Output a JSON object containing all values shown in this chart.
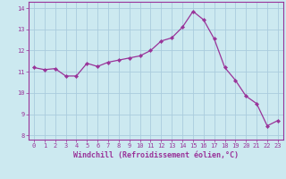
{
  "x": [
    0,
    1,
    2,
    3,
    4,
    5,
    6,
    7,
    8,
    9,
    10,
    11,
    12,
    13,
    14,
    15,
    16,
    17,
    18,
    19,
    20,
    21,
    22,
    23
  ],
  "y": [
    11.2,
    11.1,
    11.15,
    10.8,
    10.8,
    11.4,
    11.25,
    11.45,
    11.55,
    11.65,
    11.75,
    12.0,
    12.45,
    12.6,
    13.1,
    13.85,
    13.45,
    12.55,
    11.2,
    10.6,
    9.85,
    9.5,
    8.45,
    8.7
  ],
  "line_color": "#993399",
  "marker": "D",
  "marker_size": 2.2,
  "bg_color": "#cce9f0",
  "grid_color": "#aaccdd",
  "xlabel": "Windchill (Refroidissement éolien,°C)",
  "ylim": [
    7.8,
    14.3
  ],
  "xlim": [
    -0.5,
    23.5
  ],
  "yticks": [
    8,
    9,
    10,
    11,
    12,
    13,
    14
  ],
  "xticks": [
    0,
    1,
    2,
    3,
    4,
    5,
    6,
    7,
    8,
    9,
    10,
    11,
    12,
    13,
    14,
    15,
    16,
    17,
    18,
    19,
    20,
    21,
    22,
    23
  ],
  "tick_label_color": "#993399",
  "xlabel_color": "#993399",
  "tick_fontsize": 5.0,
  "xlabel_fontsize": 6.0,
  "linewidth": 0.9
}
